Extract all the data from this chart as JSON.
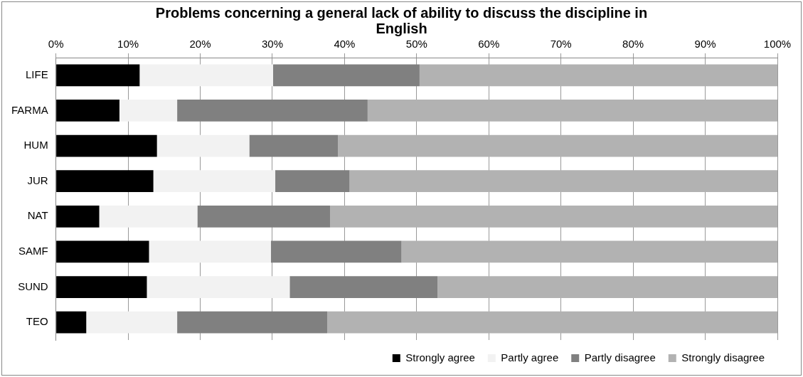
{
  "chart_data": {
    "type": "bar",
    "orientation": "horizontal",
    "stacked": true,
    "title": "Problems concerning a general lack of ability to discuss the discipline in English",
    "categories": [
      "LIFE",
      "FARMA",
      "HUM",
      "JUR",
      "NAT",
      "SAMF",
      "SUND",
      "TEO"
    ],
    "series": [
      {
        "name": "Strongly agree",
        "color": "#000000",
        "values": [
          11.6,
          8.8,
          14.0,
          13.5,
          6.0,
          12.9,
          12.6,
          4.2
        ]
      },
      {
        "name": "Partly agree",
        "color": "#f2f2f2",
        "values": [
          18.5,
          8.0,
          12.8,
          16.9,
          13.6,
          16.9,
          19.8,
          12.6
        ]
      },
      {
        "name": "Partly disagree",
        "color": "#808080",
        "values": [
          20.3,
          26.4,
          12.3,
          10.3,
          18.4,
          18.1,
          20.5,
          20.8
        ]
      },
      {
        "name": "Strongly disagree",
        "color": "#b2b2b2",
        "values": [
          49.6,
          56.8,
          60.9,
          59.3,
          62.0,
          52.1,
          47.1,
          62.4
        ]
      }
    ],
    "xlim": [
      0,
      100
    ],
    "xticks": [
      {
        "value": 0,
        "label": "0%"
      },
      {
        "value": 10,
        "label": "10%"
      },
      {
        "value": 20,
        "label": "20%"
      },
      {
        "value": 30,
        "label": "30%"
      },
      {
        "value": 40,
        "label": "40%"
      },
      {
        "value": 50,
        "label": "50%"
      },
      {
        "value": 60,
        "label": "60%"
      },
      {
        "value": 70,
        "label": "70%"
      },
      {
        "value": 80,
        "label": "80%"
      },
      {
        "value": 90,
        "label": "90%"
      },
      {
        "value": 100,
        "label": "100%"
      }
    ],
    "grid": "x",
    "legend": "bottom right"
  }
}
